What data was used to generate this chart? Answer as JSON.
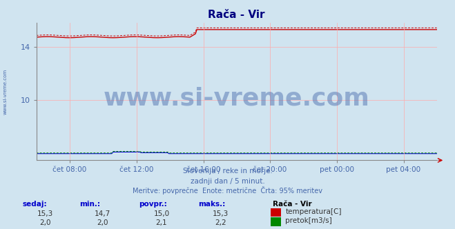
{
  "title": "Rača - Vir",
  "bg_color": "#d0e4f0",
  "plot_bg_color": "#d0e4f0",
  "title_color": "#000080",
  "title_fontsize": 11,
  "x_tick_labels": [
    "čet 08:00",
    "čet 12:00",
    "čet 16:00",
    "čet 20:00",
    "pet 00:00",
    "pet 04:00"
  ],
  "x_tick_positions": [
    0.083,
    0.25,
    0.417,
    0.583,
    0.75,
    0.917
  ],
  "y_ticks": [
    10,
    14
  ],
  "y_min": 5.5,
  "y_max": 15.8,
  "grid_color": "#ffaaaa",
  "temp_color": "#cc0000",
  "flow_line_color": "#0000cc",
  "flow_dot_color": "#008800",
  "subtitle1": "Slovenija / reke in morje.",
  "subtitle2": "zadnji dan / 5 minut.",
  "subtitle3": "Meritve: povprečne  Enote: metrične  Črta: 95% meritev",
  "subtitle_color": "#4466aa",
  "table_headers": [
    "sedaj:",
    "min.:",
    "povpr.:",
    "maks.:"
  ],
  "table_header_color": "#0000cc",
  "legend_title": "Rača - Vir",
  "legend_items": [
    "temperatura[C]",
    "pretok[m3/s]"
  ],
  "legend_colors": [
    "#cc0000",
    "#008800"
  ],
  "row1_values": [
    "15,3",
    "14,7",
    "15,0",
    "15,3"
  ],
  "row2_values": [
    "2,0",
    "2,0",
    "2,1",
    "2,2"
  ],
  "watermark": "www.si-vreme.com",
  "watermark_color": "#4466aa",
  "watermark_fontsize": 26,
  "left_label": "www.si-vreme.com",
  "left_label_color": "#4466aa"
}
